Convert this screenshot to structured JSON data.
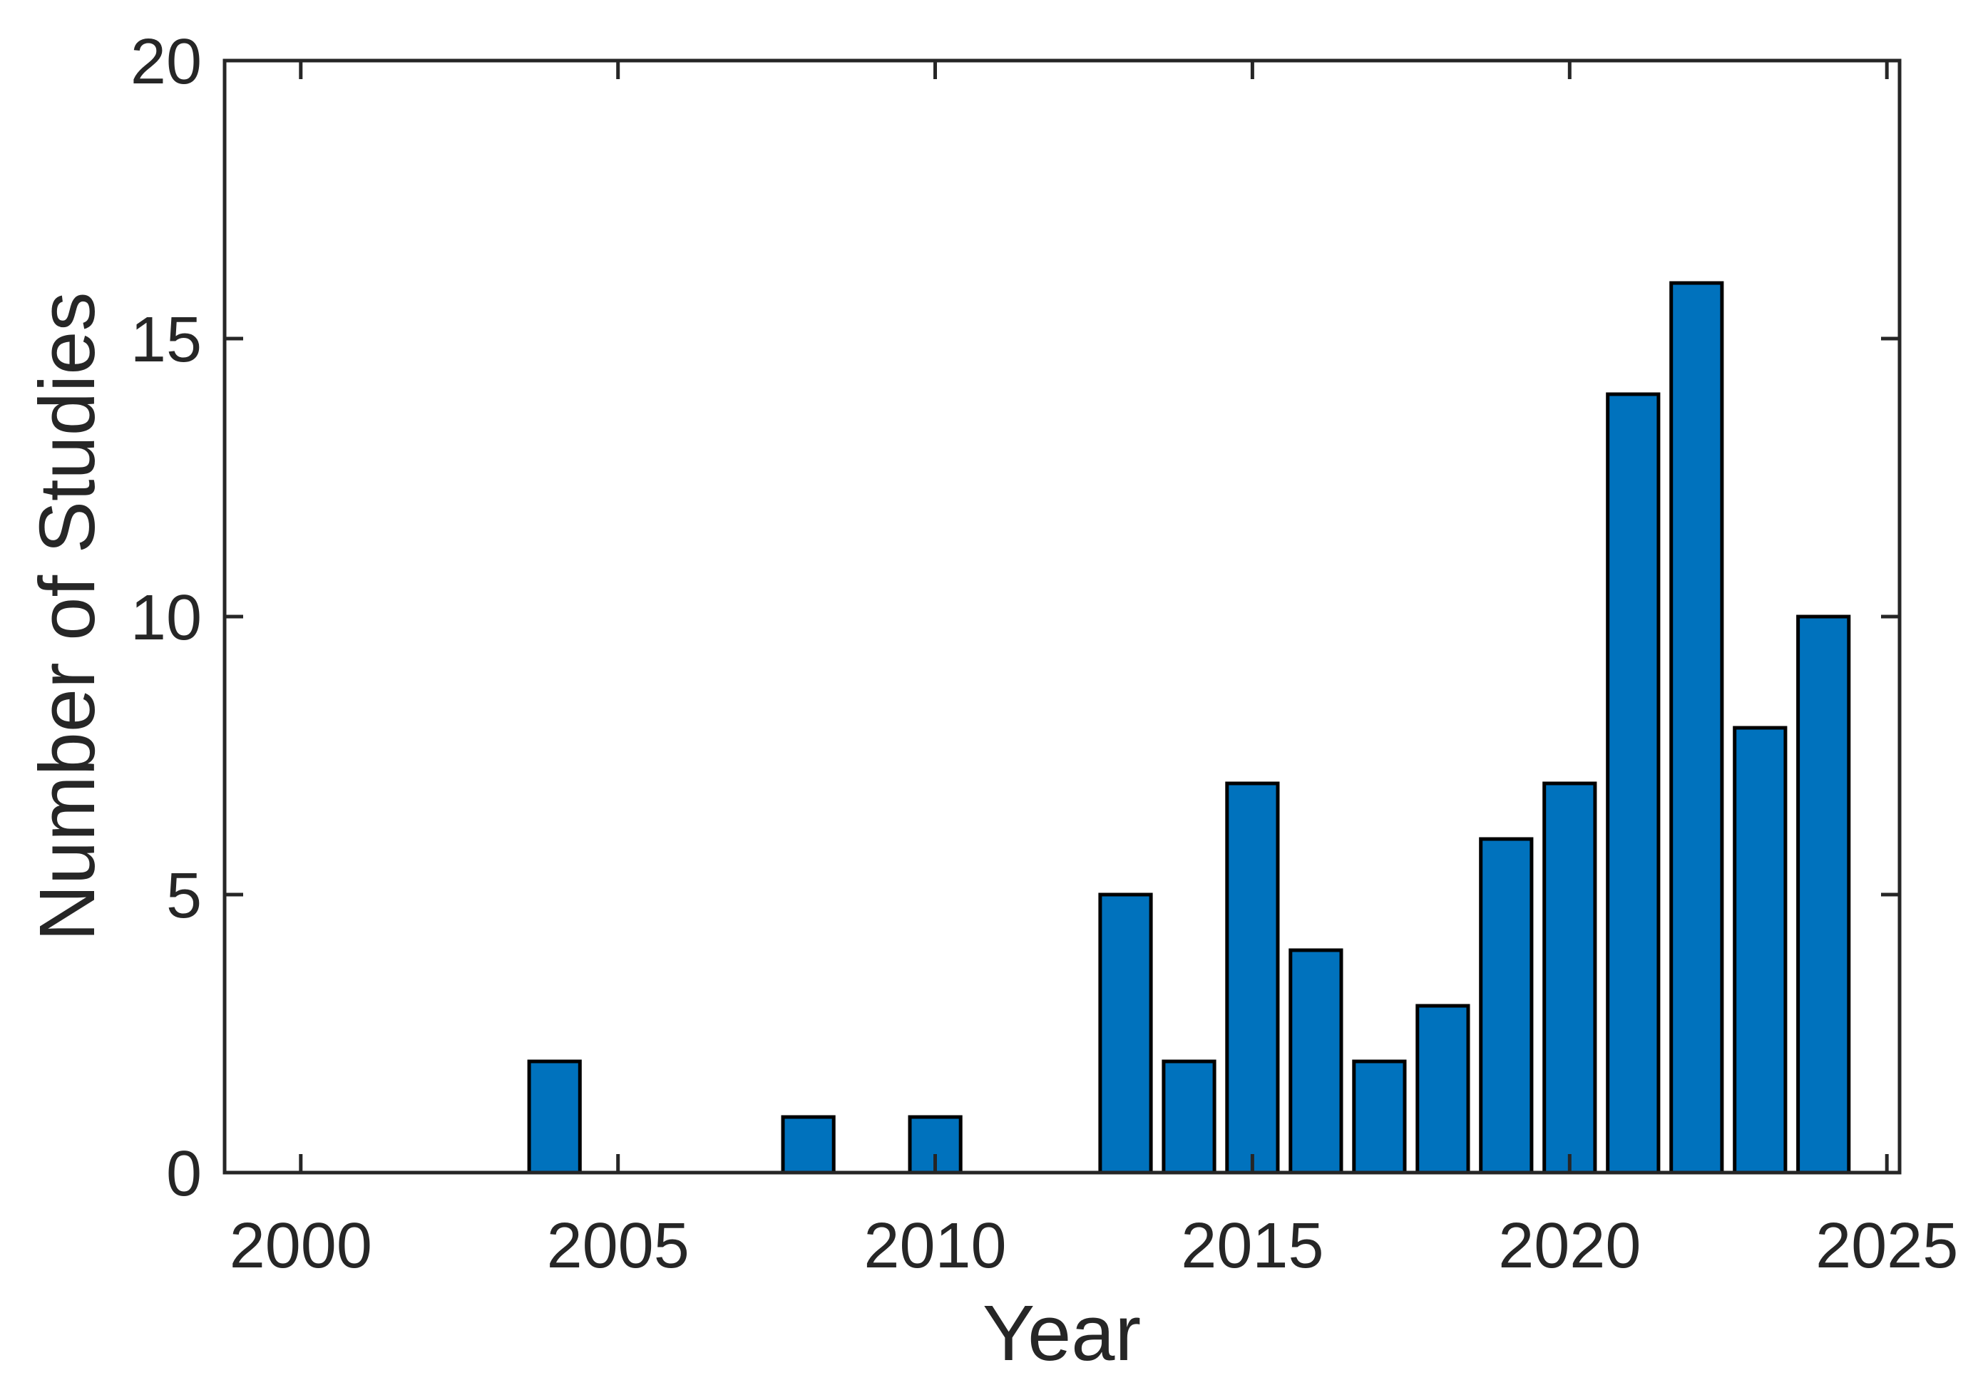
{
  "chart_data": {
    "type": "bar",
    "x": [
      2004,
      2008,
      2010,
      2013,
      2014,
      2015,
      2016,
      2017,
      2018,
      2019,
      2020,
      2021,
      2022,
      2023,
      2024
    ],
    "values": [
      2,
      1,
      1,
      5,
      2,
      7,
      4,
      2,
      3,
      6,
      7,
      14,
      16,
      8,
      10
    ],
    "title": "",
    "xlabel": "Year",
    "ylabel": "Number of Studies",
    "xlim": [
      1998.8,
      2025.2
    ],
    "ylim": [
      0,
      20
    ],
    "x_ticks": [
      2000,
      2005,
      2010,
      2015,
      2020,
      2025
    ],
    "y_ticks": [
      0,
      5,
      10,
      15,
      20
    ],
    "bar_width": 0.8,
    "bar_fill": "#0072BD",
    "bar_edge": "#000000",
    "axis_color": "#262626",
    "background": "#ffffff",
    "grid": false,
    "legend": null,
    "tick_direction": "in",
    "box": true
  }
}
